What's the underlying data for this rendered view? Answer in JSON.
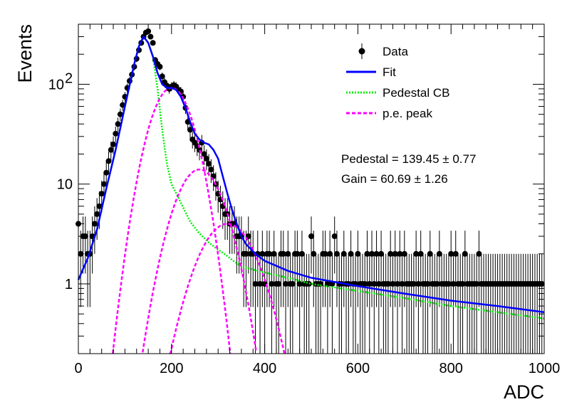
{
  "chart_data": {
    "type": "scatter",
    "title": "",
    "xlabel": "ADC",
    "ylabel": "Events",
    "xlim": [
      0,
      1000
    ],
    "ylim": [
      0.2,
      400
    ],
    "yscale": "log",
    "grid": false,
    "legend_position": "top-right",
    "x_ticks": [
      "0",
      "200",
      "400",
      "600",
      "800",
      "1000"
    ],
    "y_tick_labels": [
      {
        "value": 1,
        "label": "1"
      },
      {
        "value": 10,
        "label": "10"
      },
      {
        "value": 100,
        "label": "10",
        "exponent": "2"
      }
    ],
    "legend": [
      {
        "key": "data",
        "label": "Data",
        "style": "marker",
        "color": "#000000"
      },
      {
        "key": "fit",
        "label": "Fit",
        "style": "solid",
        "color": "#0000ff"
      },
      {
        "key": "pedestal",
        "label": "Pedestal CB",
        "style": "dotted",
        "color": "#00ee00"
      },
      {
        "key": "pe",
        "label": "p.e. peak",
        "style": "dashed",
        "color": "#ff00ff"
      }
    ],
    "fit_results": [
      {
        "text": "Pedestal = 139.45",
        "error": "0.77"
      },
      {
        "text": "Gain = 60.69",
        "error": "1.26"
      }
    ],
    "data_points": {
      "x": [
        0,
        5,
        10,
        15,
        20,
        25,
        30,
        35,
        40,
        45,
        50,
        55,
        60,
        65,
        70,
        75,
        80,
        85,
        90,
        95,
        100,
        105,
        110,
        115,
        120,
        125,
        130,
        135,
        140,
        145,
        150,
        155,
        160,
        165,
        170,
        175,
        180,
        185,
        190,
        195,
        200,
        205,
        210,
        215,
        220,
        225,
        230,
        235,
        240,
        245,
        250,
        255,
        260,
        265,
        270,
        275,
        280,
        285,
        290,
        295,
        300,
        305,
        310,
        315,
        320,
        325,
        330,
        335,
        340,
        345,
        350,
        355,
        360,
        365,
        370,
        375,
        380,
        385,
        390,
        395,
        400,
        405,
        410,
        415,
        420,
        425,
        430,
        435,
        440,
        445,
        450,
        455,
        460,
        465,
        470,
        475,
        480,
        485,
        490,
        495,
        500,
        505,
        510,
        515,
        520,
        525,
        530,
        535,
        540,
        545,
        550,
        555,
        560,
        565,
        570,
        575,
        580,
        585,
        590,
        595,
        600,
        605,
        610,
        615,
        620,
        625,
        630,
        635,
        640,
        645,
        650,
        655,
        660,
        665,
        670,
        675,
        680,
        685,
        690,
        695,
        700,
        705,
        710,
        715,
        720,
        725,
        730,
        735,
        740,
        745,
        750,
        755,
        760,
        765,
        770,
        775,
        780,
        785,
        790,
        795,
        800,
        805,
        810,
        815,
        820,
        825,
        830,
        835,
        840,
        845,
        850,
        855,
        860,
        865,
        870,
        875,
        880,
        885,
        890,
        895,
        900,
        905,
        910,
        915,
        920,
        925,
        930,
        935,
        940,
        945,
        950,
        955,
        960,
        965,
        970,
        975,
        980,
        985,
        990,
        995
      ],
      "y": [
        4,
        2,
        3,
        3,
        2,
        2,
        3,
        4,
        5,
        6,
        8,
        10,
        13,
        17,
        22,
        25,
        32,
        40,
        50,
        62,
        75,
        92,
        108,
        125,
        150,
        180,
        220,
        260,
        300,
        330,
        340,
        300,
        260,
        175,
        160,
        150,
        120,
        105,
        97,
        90,
        95,
        98,
        95,
        88,
        85,
        75,
        58,
        42,
        35,
        28,
        26,
        24,
        22,
        26,
        20,
        18,
        16,
        14,
        12,
        10,
        8,
        7,
        6,
        5,
        5,
        4,
        4,
        4,
        3,
        3,
        3,
        2,
        2,
        3,
        2,
        2,
        1,
        2,
        1,
        2,
        1,
        2,
        2,
        1,
        2,
        1,
        1,
        2,
        2,
        1,
        2,
        1,
        1,
        2,
        2,
        1,
        2,
        1,
        1,
        1,
        3,
        2,
        1,
        1,
        1,
        2,
        2,
        1,
        2,
        1,
        3,
        2,
        1,
        1,
        2,
        1,
        1,
        2,
        1,
        1,
        2,
        1,
        1,
        1,
        2,
        1,
        2,
        1,
        2,
        1,
        2,
        1,
        1,
        1,
        2,
        1,
        2,
        1,
        2,
        1,
        2,
        1,
        1,
        1,
        1,
        2,
        1,
        2,
        1,
        1,
        1,
        2,
        1,
        1,
        1,
        2,
        1,
        1,
        1,
        1,
        2,
        1,
        2,
        1,
        1,
        1,
        2,
        1,
        1,
        1,
        1,
        1,
        2,
        1,
        1,
        1,
        1,
        1,
        1,
        1,
        1,
        1,
        1,
        1,
        1,
        1,
        1,
        1,
        1,
        1,
        1,
        1,
        1,
        1,
        1,
        1,
        1,
        1,
        1,
        1
      ]
    },
    "fit_curve": {
      "x": [
        0,
        20,
        40,
        60,
        80,
        100,
        120,
        130,
        140,
        150,
        160,
        170,
        180,
        190,
        200,
        210,
        220,
        230,
        240,
        250,
        260,
        270,
        280,
        290,
        300,
        310,
        320,
        330,
        340,
        350,
        360,
        380,
        400,
        450,
        500,
        600,
        700,
        800,
        900,
        1000
      ],
      "y": [
        1.1,
        1.8,
        3.5,
        9,
        22,
        60,
        160,
        240,
        300,
        260,
        190,
        130,
        100,
        92,
        92,
        88,
        75,
        58,
        42,
        32,
        28,
        26,
        25,
        22,
        18,
        12,
        8,
        5.5,
        4,
        3,
        2.5,
        2,
        1.7,
        1.35,
        1.15,
        0.95,
        0.8,
        0.68,
        0.6,
        0.52
      ]
    },
    "pedestal_curve": {
      "x": [
        0,
        20,
        40,
        60,
        80,
        100,
        120,
        130,
        140,
        150,
        160,
        170,
        180,
        190,
        200,
        220,
        240,
        260,
        280,
        300,
        320,
        340,
        360,
        400,
        450,
        500,
        600,
        700,
        800,
        900,
        1000
      ],
      "y": [
        1.1,
        1.8,
        3.5,
        9,
        22,
        60,
        160,
        240,
        300,
        260,
        190,
        90,
        35,
        16,
        10,
        6.5,
        4.2,
        3.2,
        2.6,
        2.2,
        1.9,
        1.6,
        1.45,
        1.3,
        1.15,
        1.0,
        0.85,
        0.72,
        0.6,
        0.52,
        0.45
      ]
    },
    "pe_peaks": [
      {
        "mean": 200,
        "sigma": 36,
        "amplitude": 92
      },
      {
        "mean": 260,
        "sigma": 42,
        "amplitude": 14
      },
      {
        "mean": 320,
        "sigma": 50,
        "amplitude": 4
      }
    ]
  }
}
